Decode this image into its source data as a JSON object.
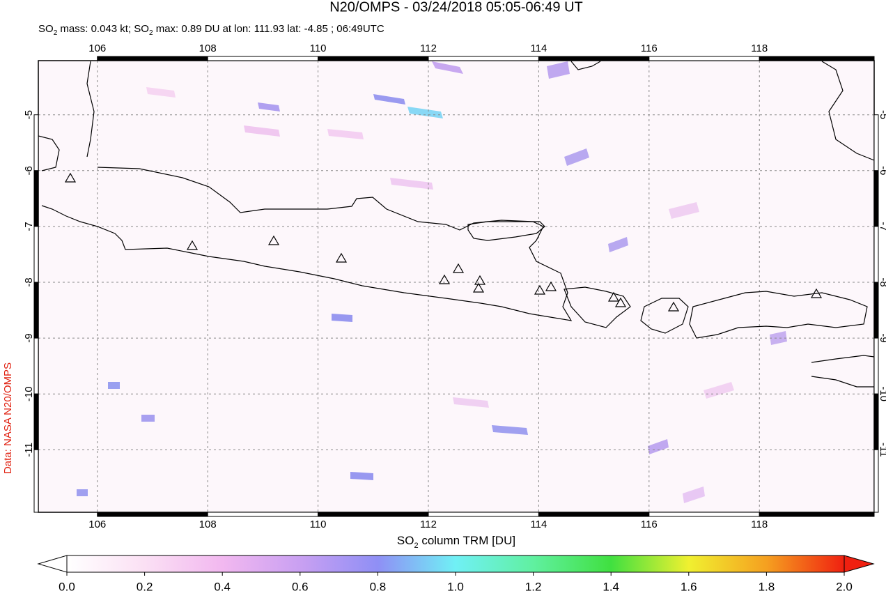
{
  "header": {
    "title": "N20/OMPS - 03/24/2018 05:05-06:49 UT",
    "subtitle": [
      "SO",
      "2",
      " mass: 0.043 kt; SO",
      "2",
      " max: 0.89 DU at lon: 111.93 lat: -4.85 ; 06:49UTC"
    ]
  },
  "map": {
    "lon_range": [
      104.93,
      120.08
    ],
    "lat_range": [
      -12.12,
      -4.03
    ],
    "lon_ticks": [
      106,
      108,
      110,
      112,
      114,
      116,
      118
    ],
    "lat_ticks": [
      -5,
      -6,
      -7,
      -8,
      -9,
      -10,
      -11
    ]
  },
  "colorbar": {
    "label": [
      "SO",
      "2",
      " column TRM [DU]"
    ],
    "ticks": [
      "0.0",
      "0.2",
      "0.4",
      "0.6",
      "0.8",
      "1.0",
      "1.2",
      "1.4",
      "1.6",
      "1.8",
      "2.0"
    ]
  },
  "credit": "Data: NASA N20/OMPS"
}
